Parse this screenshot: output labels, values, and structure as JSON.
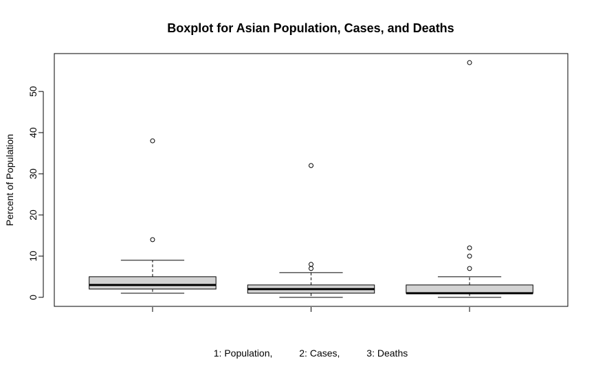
{
  "chart_data": {
    "type": "boxplot",
    "title": "Boxplot for Asian Population, Cases, and Deaths",
    "ylabel": "Percent of Population",
    "xlabel": "1: Population,          2: Cases,          3: Deaths",
    "ylim": [
      -2.2,
      59.2
    ],
    "yticks": [
      0,
      10,
      20,
      30,
      40,
      50
    ],
    "ytick_labels": [
      "0",
      "10",
      "20",
      "30",
      "40",
      "50"
    ],
    "grid": false,
    "colors": {
      "box_fill": "#d3d3d3",
      "stroke": "#000000"
    },
    "series": [
      {
        "min": 1,
        "q1": 2,
        "median": 3,
        "q3": 5,
        "max": 9,
        "outliers": [
          14,
          38
        ]
      },
      {
        "min": 0,
        "q1": 1,
        "median": 2,
        "q3": 3,
        "max": 6,
        "outliers": [
          7,
          8,
          32
        ]
      },
      {
        "min": 0,
        "q1": 1,
        "median": 1,
        "q3": 3,
        "max": 5,
        "outliers": [
          7,
          10,
          12,
          57
        ]
      }
    ]
  }
}
